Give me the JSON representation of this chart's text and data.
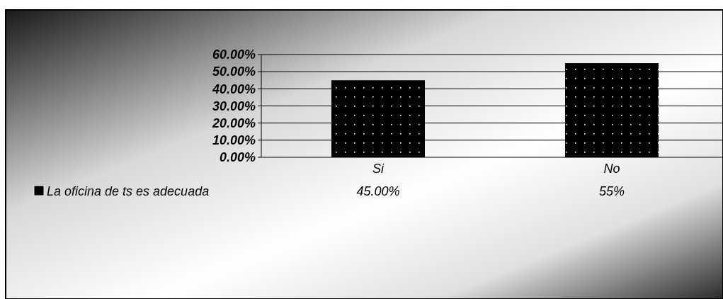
{
  "chart_data": {
    "type": "bar",
    "categories": [
      "Si",
      "No"
    ],
    "series": [
      {
        "name": "La oficina de ts es adecuada",
        "color": "#000000",
        "values": [
          45,
          55
        ],
        "value_labels": [
          "45.00%",
          "55%"
        ]
      }
    ],
    "ylim": [
      0,
      60
    ],
    "yticks": [
      {
        "value": 0,
        "label": "0.00%"
      },
      {
        "value": 10,
        "label": "10.00%"
      },
      {
        "value": 20,
        "label": "20.00%"
      },
      {
        "value": 30,
        "label": "30.00%"
      },
      {
        "value": 40,
        "label": "40.00%"
      },
      {
        "value": 50,
        "label": "50.00%"
      },
      {
        "value": 60,
        "label": "60.00%"
      }
    ],
    "grid": "y",
    "legend": "bottom left"
  }
}
